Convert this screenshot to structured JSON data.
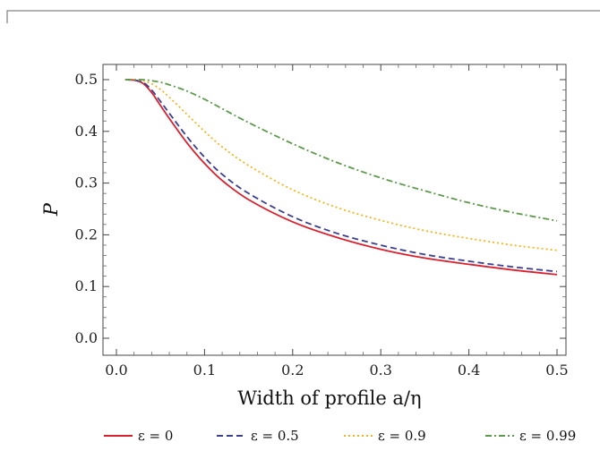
{
  "chart_data": {
    "type": "line",
    "title": "",
    "xlabel": "Width of profile  a/η",
    "ylabel": "P",
    "xlim": [
      0.0,
      0.5
    ],
    "ylim": [
      0.0,
      0.5
    ],
    "xticks": [
      "0.0",
      "0.1",
      "0.2",
      "0.3",
      "0.4",
      "0.5"
    ],
    "yticks": [
      "0.0",
      "0.1",
      "0.2",
      "0.3",
      "0.4",
      "0.5"
    ],
    "legend_position": "bottom",
    "grid": false,
    "series": [
      {
        "name": "ε = 0",
        "color": "#d9202f",
        "dash": "solid",
        "x": [
          0.01,
          0.02,
          0.03,
          0.04,
          0.05,
          0.06,
          0.08,
          0.1,
          0.12,
          0.15,
          0.2,
          0.25,
          0.3,
          0.35,
          0.4,
          0.45,
          0.5
        ],
        "y": [
          0.5,
          0.499,
          0.493,
          0.475,
          0.45,
          0.425,
          0.378,
          0.338,
          0.305,
          0.268,
          0.225,
          0.195,
          0.172,
          0.155,
          0.143,
          0.132,
          0.123
        ]
      },
      {
        "name": "ε = 0.5",
        "color": "#3b3f8f",
        "dash": "dashed",
        "x": [
          0.01,
          0.02,
          0.03,
          0.04,
          0.05,
          0.06,
          0.08,
          0.1,
          0.12,
          0.15,
          0.2,
          0.25,
          0.3,
          0.35,
          0.4,
          0.45,
          0.5
        ],
        "y": [
          0.5,
          0.499,
          0.495,
          0.48,
          0.458,
          0.435,
          0.39,
          0.35,
          0.317,
          0.28,
          0.235,
          0.203,
          0.18,
          0.162,
          0.149,
          0.138,
          0.129
        ]
      },
      {
        "name": "ε = 0.9",
        "color": "#f2b51c",
        "dash": "dotted",
        "x": [
          0.01,
          0.02,
          0.03,
          0.04,
          0.05,
          0.06,
          0.08,
          0.1,
          0.12,
          0.15,
          0.2,
          0.25,
          0.3,
          0.35,
          0.4,
          0.45,
          0.5
        ],
        "y": [
          0.5,
          0.5,
          0.498,
          0.492,
          0.481,
          0.466,
          0.433,
          0.4,
          0.37,
          0.334,
          0.287,
          0.253,
          0.228,
          0.208,
          0.193,
          0.18,
          0.17
        ]
      },
      {
        "name": "ε = 0.99",
        "color": "#5e9a4c",
        "dash": "dashdot",
        "x": [
          0.01,
          0.02,
          0.03,
          0.04,
          0.05,
          0.06,
          0.08,
          0.1,
          0.12,
          0.15,
          0.2,
          0.25,
          0.3,
          0.35,
          0.4,
          0.45,
          0.5
        ],
        "y": [
          0.5,
          0.5,
          0.5,
          0.498,
          0.495,
          0.49,
          0.478,
          0.462,
          0.444,
          0.417,
          0.376,
          0.34,
          0.31,
          0.285,
          0.262,
          0.243,
          0.227
        ]
      }
    ]
  }
}
